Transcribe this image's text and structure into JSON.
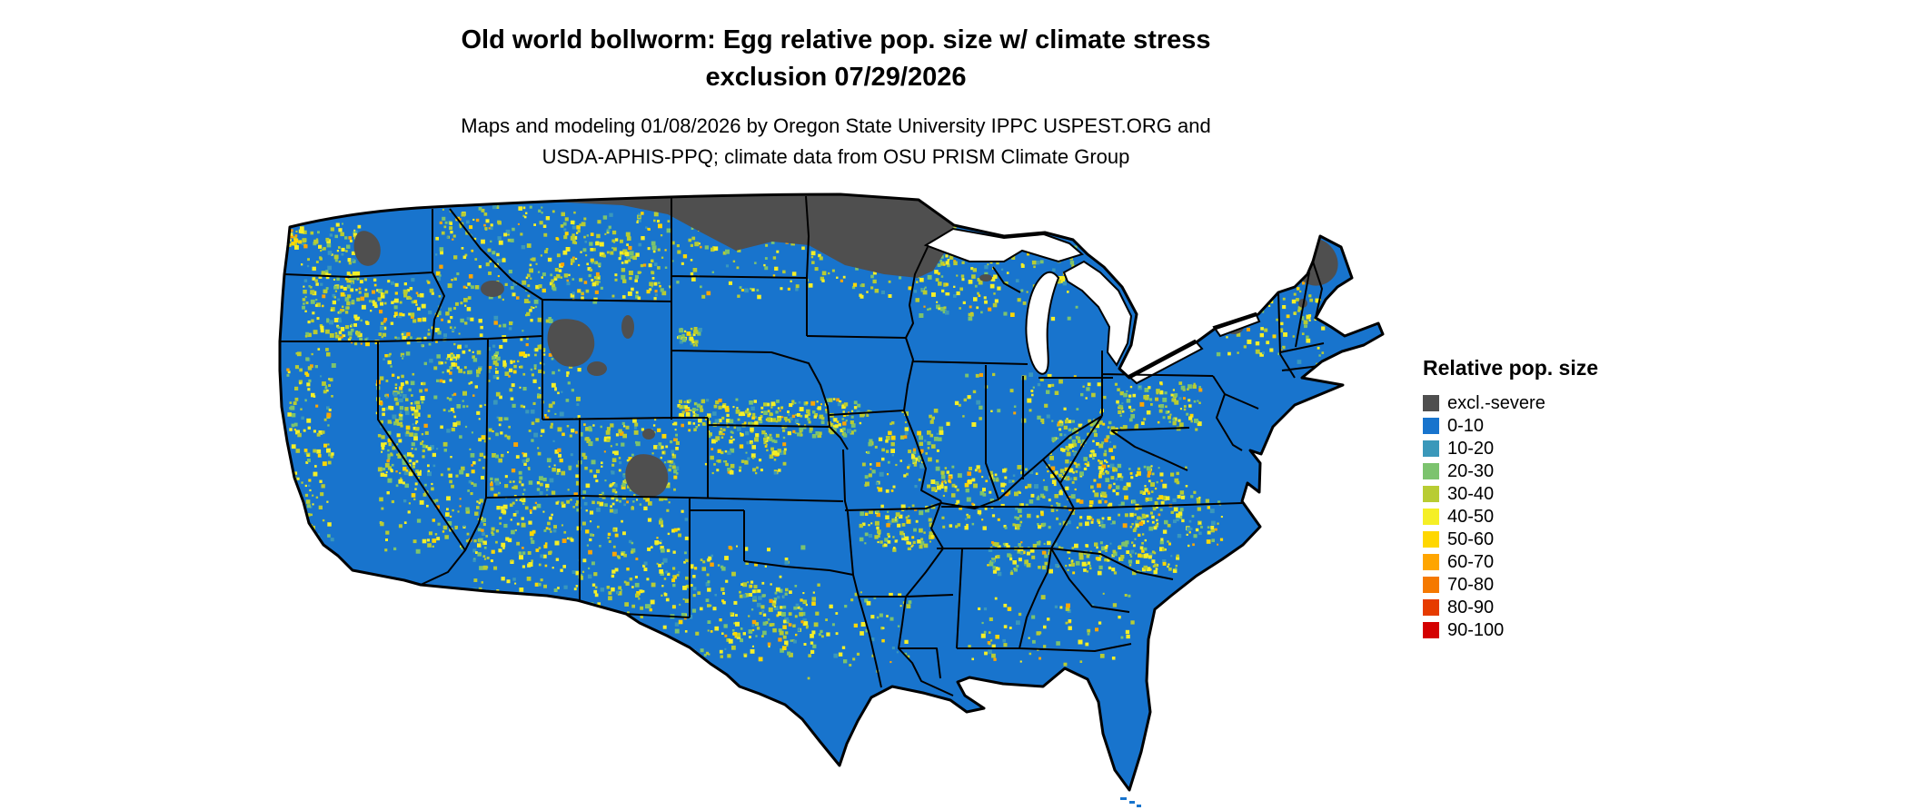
{
  "header": {
    "title_line1": "Old world bollworm: Egg relative pop. size w/ climate stress",
    "title_line2": "exclusion 07/29/2026",
    "subtitle_line1": "Maps and modeling 01/08/2026 by Oregon State University IPPC USPEST.ORG and",
    "subtitle_line2": "USDA-APHIS-PPQ; climate data from OSU PRISM Climate Group"
  },
  "legend": {
    "title": "Relative pop. size",
    "items": [
      {
        "label": "excl.-severe",
        "color": "#4f4f4f"
      },
      {
        "label": "0-10",
        "color": "#1874cd"
      },
      {
        "label": "10-20",
        "color": "#3a98ba"
      },
      {
        "label": "20-30",
        "color": "#7cc36e"
      },
      {
        "label": "30-40",
        "color": "#b8cc33"
      },
      {
        "label": "40-50",
        "color": "#f5ef26"
      },
      {
        "label": "50-60",
        "color": "#ffd700"
      },
      {
        "label": "60-70",
        "color": "#ffa500"
      },
      {
        "label": "70-80",
        "color": "#f57900"
      },
      {
        "label": "80-90",
        "color": "#e63b00"
      },
      {
        "label": "90-100",
        "color": "#d40000"
      }
    ]
  }
}
